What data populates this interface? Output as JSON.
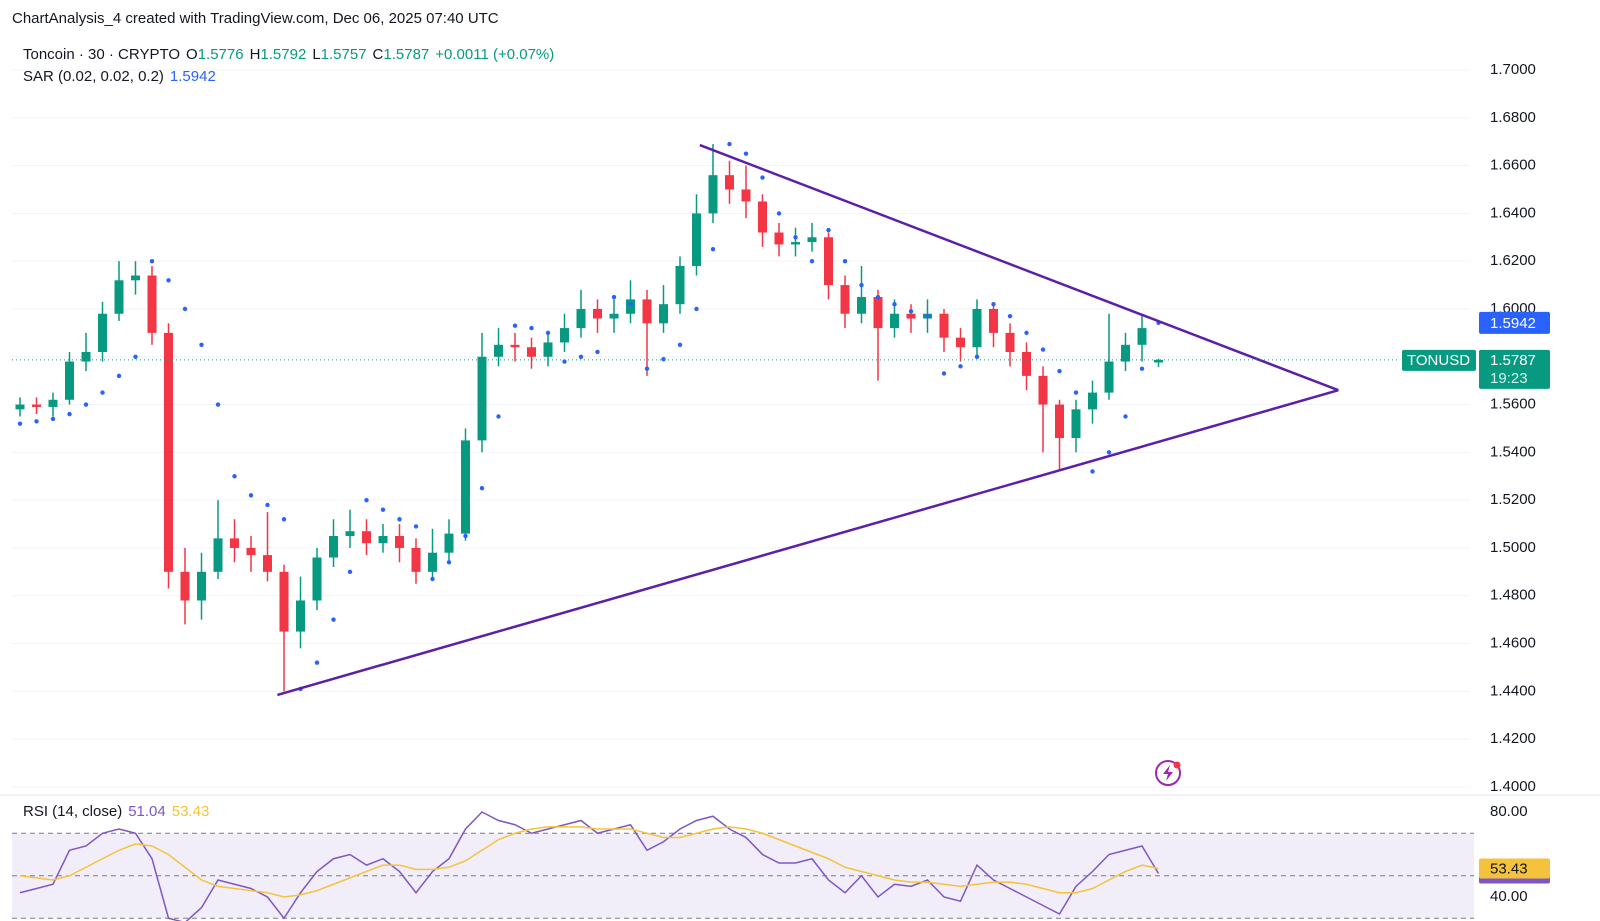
{
  "header": {
    "text": "ChartAnalysis_4 created with TradingView.com, Dec 06, 2025 07:40 UTC"
  },
  "chart_data": [
    {
      "type": "candlestick",
      "title": "Toncoin · 30 · CRYPTO",
      "ohlc_letters": [
        "O",
        "H",
        "L",
        "C"
      ],
      "change": "+0.0011 (+0.07%)",
      "up_color": "#089981",
      "down_color": "#f23645",
      "open": [
        1.558,
        1.56,
        1.559,
        1.562,
        1.578,
        1.582,
        1.598,
        1.612,
        1.614,
        1.59,
        1.49,
        1.478,
        1.49,
        1.504,
        1.5,
        1.497,
        1.49,
        1.465,
        1.478,
        1.496,
        1.505,
        1.507,
        1.502,
        1.505,
        1.5,
        1.49,
        1.498,
        1.506,
        1.545,
        1.58,
        1.585,
        1.584,
        1.58,
        1.586,
        1.592,
        1.6,
        1.596,
        1.598,
        1.604,
        1.594,
        1.602,
        1.618,
        1.64,
        1.656,
        1.65,
        1.645,
        1.632,
        1.627,
        1.628,
        1.63,
        1.61,
        1.598,
        1.605,
        1.592,
        1.598,
        1.596,
        1.598,
        1.588,
        1.584,
        1.6,
        1.59,
        1.582,
        1.572,
        1.56,
        1.546,
        1.558,
        1.565,
        1.578,
        1.585,
        1.5776
      ],
      "high": [
        1.563,
        1.563,
        1.565,
        1.582,
        1.59,
        1.603,
        1.62,
        1.62,
        1.618,
        1.594,
        1.5,
        1.498,
        1.52,
        1.512,
        1.505,
        1.515,
        1.493,
        1.488,
        1.5,
        1.512,
        1.516,
        1.512,
        1.51,
        1.51,
        1.504,
        1.508,
        1.512,
        1.55,
        1.59,
        1.592,
        1.59,
        1.588,
        1.59,
        1.598,
        1.608,
        1.604,
        1.604,
        1.612,
        1.608,
        1.61,
        1.622,
        1.648,
        1.669,
        1.662,
        1.66,
        1.648,
        1.636,
        1.634,
        1.636,
        1.632,
        1.614,
        1.618,
        1.608,
        1.604,
        1.602,
        1.604,
        1.6,
        1.592,
        1.604,
        1.602,
        1.594,
        1.586,
        1.576,
        1.562,
        1.562,
        1.57,
        1.598,
        1.59,
        1.597,
        1.5792
      ],
      "low": [
        1.555,
        1.556,
        1.555,
        1.56,
        1.574,
        1.578,
        1.595,
        1.606,
        1.585,
        1.483,
        1.468,
        1.47,
        1.487,
        1.494,
        1.49,
        1.486,
        1.44,
        1.458,
        1.474,
        1.492,
        1.5,
        1.497,
        1.498,
        1.494,
        1.485,
        1.487,
        1.494,
        1.503,
        1.54,
        1.576,
        1.578,
        1.575,
        1.576,
        1.582,
        1.588,
        1.59,
        1.59,
        1.594,
        1.572,
        1.59,
        1.598,
        1.614,
        1.636,
        1.644,
        1.638,
        1.626,
        1.622,
        1.622,
        1.624,
        1.604,
        1.592,
        1.594,
        1.57,
        1.588,
        1.59,
        1.59,
        1.582,
        1.578,
        1.58,
        1.584,
        1.576,
        1.566,
        1.54,
        1.533,
        1.54,
        1.552,
        1.562,
        1.574,
        1.578,
        1.5757
      ],
      "close": [
        1.56,
        1.559,
        1.562,
        1.578,
        1.582,
        1.598,
        1.612,
        1.614,
        1.59,
        1.49,
        1.478,
        1.49,
        1.504,
        1.5,
        1.497,
        1.49,
        1.465,
        1.478,
        1.496,
        1.505,
        1.507,
        1.502,
        1.505,
        1.5,
        1.49,
        1.498,
        1.506,
        1.545,
        1.58,
        1.585,
        1.584,
        1.58,
        1.586,
        1.592,
        1.6,
        1.596,
        1.598,
        1.604,
        1.594,
        1.602,
        1.618,
        1.64,
        1.656,
        1.65,
        1.645,
        1.632,
        1.627,
        1.628,
        1.63,
        1.61,
        1.598,
        1.605,
        1.592,
        1.598,
        1.596,
        1.598,
        1.588,
        1.584,
        1.6,
        1.59,
        1.582,
        1.572,
        1.56,
        1.546,
        1.558,
        1.565,
        1.578,
        1.585,
        1.592,
        1.5787
      ],
      "ylim": [
        1.3987,
        1.7293
      ],
      "yticks": [
        {
          "value": 1.4,
          "label": "1.4000"
        },
        {
          "value": 1.42,
          "label": "1.4200"
        },
        {
          "value": 1.44,
          "label": "1.4400"
        },
        {
          "value": 1.46,
          "label": "1.4600"
        },
        {
          "value": 1.48,
          "label": "1.4800"
        },
        {
          "value": 1.5,
          "label": "1.5000"
        },
        {
          "value": 1.52,
          "label": "1.5200"
        },
        {
          "value": 1.54,
          "label": "1.5400"
        },
        {
          "value": 1.56,
          "label": "1.5600"
        },
        {
          "value": 1.58,
          "label": "1.5800"
        },
        {
          "value": 1.6,
          "label": "1.6000"
        },
        {
          "value": 1.62,
          "label": "1.6200"
        },
        {
          "value": 1.64,
          "label": "1.6400"
        },
        {
          "value": 1.66,
          "label": "1.6600"
        },
        {
          "value": 1.68,
          "label": "1.6800"
        },
        {
          "value": 1.7,
          "label": "1.7000"
        }
      ],
      "grid": true,
      "indicators": [
        {
          "name": "SAR (0.02, 0.02, 0.2)",
          "color": "#2962ff",
          "values": [
            1.552,
            1.553,
            1.554,
            1.556,
            1.56,
            1.565,
            1.572,
            1.58,
            1.62,
            1.612,
            1.6,
            1.585,
            1.56,
            1.53,
            1.522,
            1.518,
            1.512,
            1.441,
            1.452,
            1.47,
            1.49,
            1.52,
            1.516,
            1.512,
            1.509,
            1.487,
            1.494,
            1.505,
            1.525,
            1.555,
            1.593,
            1.592,
            1.59,
            1.578,
            1.58,
            1.582,
            1.605,
            1.602,
            1.575,
            1.579,
            1.585,
            1.6,
            1.625,
            1.669,
            1.665,
            1.655,
            1.64,
            1.63,
            1.62,
            1.633,
            1.62,
            1.61,
            1.605,
            1.602,
            1.599,
            1.597,
            1.573,
            1.576,
            1.58,
            1.602,
            1.597,
            1.59,
            1.583,
            1.574,
            1.565,
            1.532,
            1.54,
            1.555,
            1.575,
            1.5942
          ]
        }
      ],
      "trendlines": [
        {
          "color": "#5b1fa8",
          "x": [
            41.2,
            79.9
          ],
          "y": [
            1.6686,
            1.566
          ]
        },
        {
          "color": "#5b1fa8",
          "x": [
            15.6,
            79.9
          ],
          "y": [
            1.4385,
            1.566
          ]
        }
      ],
      "last_price": {
        "symbol": "TONUSD",
        "countdown": "19:23"
      }
    },
    {
      "type": "line",
      "title": "RSI (14, close)",
      "series": [
        {
          "color": "#7e57c2",
          "values": [
            42,
            44,
            46,
            62,
            64,
            70,
            72,
            70,
            58,
            30,
            28,
            35,
            48,
            46,
            44,
            40,
            30,
            42,
            52,
            58,
            60,
            55,
            58,
            52,
            42,
            52,
            58,
            72,
            80,
            76,
            74,
            70,
            72,
            74,
            76,
            70,
            72,
            74,
            62,
            66,
            72,
            76,
            78,
            72,
            68,
            60,
            56,
            56,
            58,
            48,
            42,
            50,
            40,
            46,
            45,
            48,
            40,
            38,
            55,
            48,
            44,
            40,
            36,
            32,
            45,
            52,
            60,
            62,
            64,
            51.04
          ]
        },
        {
          "color": "#f5c33b",
          "values": [
            50,
            49,
            48,
            50,
            54,
            58,
            62,
            65,
            64,
            60,
            54,
            48,
            45,
            44,
            43,
            42,
            40,
            41,
            43,
            46,
            49,
            52,
            55,
            55,
            53,
            53,
            54,
            57,
            62,
            67,
            70,
            72,
            73,
            73,
            73,
            72,
            72,
            72,
            70,
            68,
            68,
            70,
            72,
            73,
            72,
            70,
            67,
            64,
            61,
            58,
            54,
            52,
            50,
            48,
            47,
            47,
            46,
            45,
            46,
            47,
            47,
            46,
            44,
            42,
            42,
            44,
            48,
            52,
            55,
            53.43
          ]
        }
      ],
      "ylim": [
        28.7,
        85.65
      ],
      "yticks": [
        {
          "value": 80,
          "label": "80.00"
        },
        {
          "value": 40,
          "label": "40.00"
        }
      ],
      "levels": [
        70,
        50,
        30
      ],
      "band": [
        30,
        70
      ]
    }
  ]
}
